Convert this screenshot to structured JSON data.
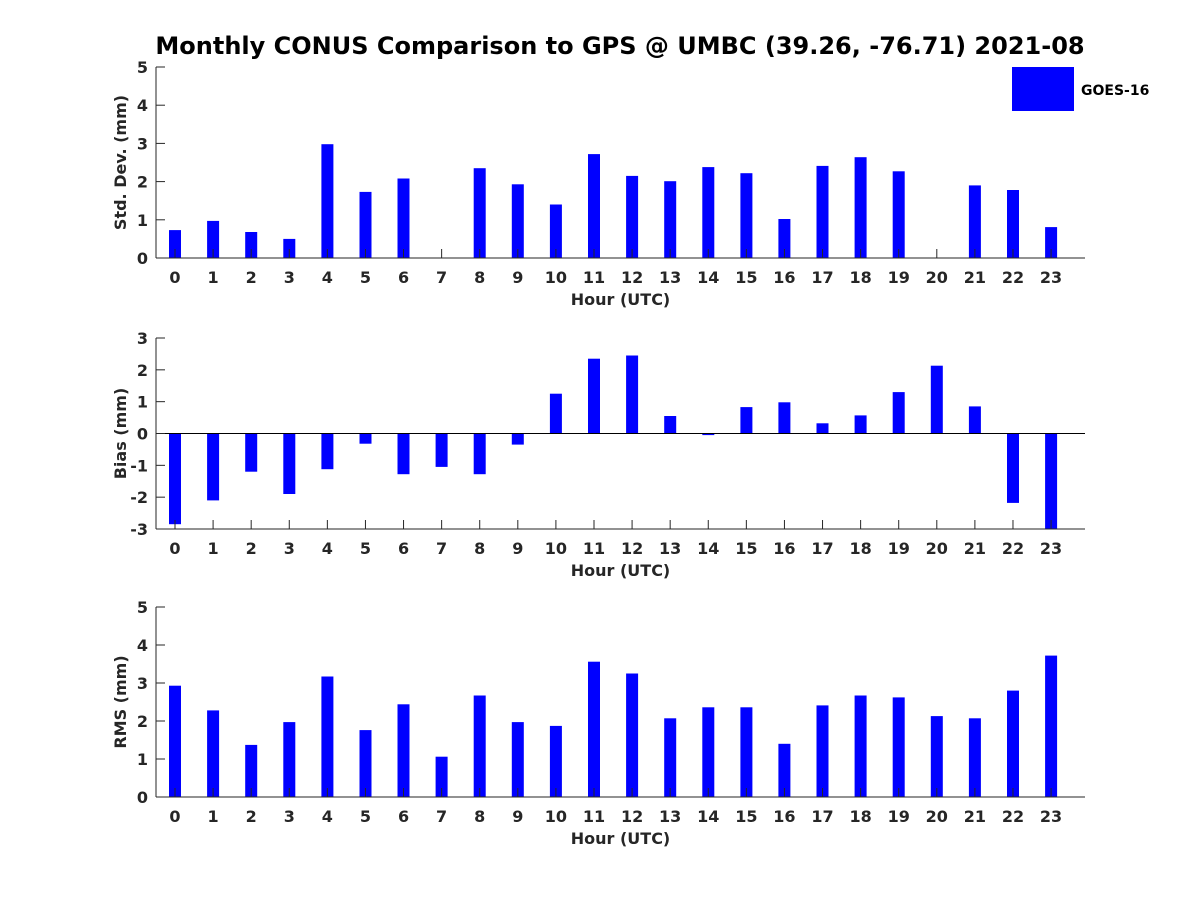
{
  "colors": {
    "bar": "#0000ff",
    "axis": "#262626",
    "background": "#ffffff"
  },
  "chart_data": [
    {
      "type": "bar",
      "title": "Monthly CONUS Comparison to GPS @ UMBC (39.26, -76.71) 2021-08",
      "xlabel": "Hour (UTC)",
      "ylabel": "Std. Dev. (mm)",
      "ylim": [
        0,
        5
      ],
      "yticks": [
        "0",
        "1",
        "2",
        "3",
        "4",
        "5"
      ],
      "categories": [
        "0",
        "1",
        "2",
        "3",
        "4",
        "5",
        "6",
        "7",
        "8",
        "9",
        "10",
        "11",
        "12",
        "13",
        "14",
        "15",
        "16",
        "17",
        "18",
        "19",
        "20",
        "21",
        "22",
        "23"
      ],
      "series": [
        {
          "name": "GOES-16",
          "values": [
            0.73,
            0.97,
            0.68,
            0.5,
            2.98,
            1.73,
            2.08,
            0.0,
            2.35,
            1.93,
            1.4,
            2.72,
            2.15,
            2.01,
            2.38,
            2.22,
            1.02,
            2.41,
            2.64,
            2.27,
            0.0,
            1.9,
            1.78,
            0.81
          ]
        }
      ],
      "legend": {
        "entries": [
          "GOES-16"
        ],
        "position": "top-right"
      }
    },
    {
      "type": "bar",
      "xlabel": "Hour (UTC)",
      "ylabel": "Bias (mm)",
      "ylim": [
        -3,
        3
      ],
      "yticks": [
        "-3",
        "-2",
        "-1",
        "0",
        "1",
        "2",
        "3"
      ],
      "categories": [
        "0",
        "1",
        "2",
        "3",
        "4",
        "5",
        "6",
        "7",
        "8",
        "9",
        "10",
        "11",
        "12",
        "13",
        "14",
        "15",
        "16",
        "17",
        "18",
        "19",
        "20",
        "21",
        "22",
        "23"
      ],
      "series": [
        {
          "name": "GOES-16",
          "values": [
            -2.85,
            -2.1,
            -1.2,
            -1.9,
            -1.12,
            -0.32,
            -1.28,
            -1.05,
            -1.28,
            -0.35,
            1.25,
            2.35,
            2.45,
            0.55,
            -0.05,
            0.83,
            0.98,
            0.32,
            0.57,
            1.3,
            2.13,
            0.85,
            -2.18,
            -3.0
          ]
        }
      ]
    },
    {
      "type": "bar",
      "xlabel": "Hour (UTC)",
      "ylabel": "RMS (mm)",
      "ylim": [
        0,
        5
      ],
      "yticks": [
        "0",
        "1",
        "2",
        "3",
        "4",
        "5"
      ],
      "categories": [
        "0",
        "1",
        "2",
        "3",
        "4",
        "5",
        "6",
        "7",
        "8",
        "9",
        "10",
        "11",
        "12",
        "13",
        "14",
        "15",
        "16",
        "17",
        "18",
        "19",
        "20",
        "21",
        "22",
        "23"
      ],
      "series": [
        {
          "name": "GOES-16",
          "values": [
            2.93,
            2.28,
            1.37,
            1.97,
            3.17,
            1.76,
            2.44,
            1.06,
            2.67,
            1.97,
            1.87,
            3.56,
            3.25,
            2.07,
            2.36,
            2.36,
            1.4,
            2.41,
            2.67,
            2.62,
            2.13,
            2.07,
            2.8,
            3.72
          ]
        }
      ]
    }
  ]
}
